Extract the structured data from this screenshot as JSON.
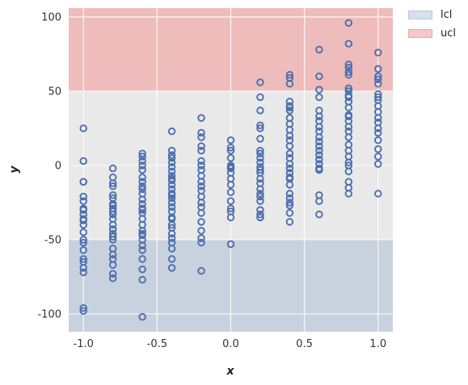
{
  "chart_data": {
    "type": "scatter",
    "title": "",
    "xlabel": "x",
    "ylabel": "y",
    "xlim": [
      -1.1,
      1.1
    ],
    "ylim": [
      -112,
      106
    ],
    "xticks": [
      "-1.0",
      "-0.5",
      "0.0",
      "0.5",
      "1.0"
    ],
    "xtick_values": [
      -1.0,
      -0.5,
      0.0,
      0.5,
      1.0
    ],
    "yticks": [
      "-100",
      "-50",
      "0",
      "50",
      "100"
    ],
    "ytick_values": [
      -100,
      -50,
      0,
      50,
      100
    ],
    "grid": true,
    "legend_position": "outside-top-right",
    "bands": [
      {
        "name": "lcl",
        "from": -112,
        "to": -50,
        "color": "#c8d2de"
      },
      {
        "name": "ucl",
        "from": 50,
        "to": 106,
        "color": "#efbcbc"
      }
    ],
    "legend": [
      {
        "label": "lcl",
        "color": "#d6e0ee",
        "border": "#b9c8dc"
      },
      {
        "label": "ucl",
        "color": "#f8c8c8",
        "border": "#e8a8a8"
      }
    ],
    "colors": {
      "points": "#4c6fae",
      "background": "#e9e9e9"
    },
    "series": [
      {
        "x": [
          -1.0,
          -1.0,
          -1.0,
          -1.0,
          -1.0,
          -1.0,
          -1.0,
          -1.0,
          -1.0,
          -1.0,
          -1.0,
          -1.0,
          -1.0,
          -1.0,
          -1.0,
          -1.0,
          -1.0,
          -1.0,
          -1.0,
          -1.0,
          -1.0,
          -1.0,
          -0.8,
          -0.8,
          -0.8,
          -0.8,
          -0.8,
          -0.8,
          -0.8,
          -0.8,
          -0.8,
          -0.8,
          -0.8,
          -0.8,
          -0.8,
          -0.8,
          -0.8,
          -0.8,
          -0.8,
          -0.8,
          -0.8,
          -0.8,
          -0.8,
          -0.8,
          -0.8,
          -0.8,
          -0.6,
          -0.6,
          -0.6,
          -0.6,
          -0.6,
          -0.6,
          -0.6,
          -0.6,
          -0.6,
          -0.6,
          -0.6,
          -0.6,
          -0.6,
          -0.6,
          -0.6,
          -0.6,
          -0.6,
          -0.6,
          -0.6,
          -0.6,
          -0.6,
          -0.6,
          -0.6,
          -0.6,
          -0.6,
          -0.6,
          -0.6,
          -0.4,
          -0.4,
          -0.4,
          -0.4,
          -0.4,
          -0.4,
          -0.4,
          -0.4,
          -0.4,
          -0.4,
          -0.4,
          -0.4,
          -0.4,
          -0.4,
          -0.4,
          -0.4,
          -0.4,
          -0.4,
          -0.4,
          -0.4,
          -0.4,
          -0.4,
          -0.4,
          -0.4,
          -0.4,
          -0.4,
          -0.4,
          -0.4,
          -0.2,
          -0.2,
          -0.2,
          -0.2,
          -0.2,
          -0.2,
          -0.2,
          -0.2,
          -0.2,
          -0.2,
          -0.2,
          -0.2,
          -0.2,
          -0.2,
          -0.2,
          -0.2,
          -0.2,
          -0.2,
          -0.2,
          -0.2,
          -0.2,
          0.0,
          0.0,
          0.0,
          0.0,
          0.0,
          0.0,
          0.0,
          0.0,
          0.0,
          0.0,
          0.0,
          0.0,
          0.0,
          0.0,
          0.0,
          0.0,
          0.2,
          0.2,
          0.2,
          0.2,
          0.2,
          0.2,
          0.2,
          0.2,
          0.2,
          0.2,
          0.2,
          0.2,
          0.2,
          0.2,
          0.2,
          0.2,
          0.2,
          0.2,
          0.2,
          0.2,
          0.2,
          0.2,
          0.2,
          0.4,
          0.4,
          0.4,
          0.4,
          0.4,
          0.4,
          0.4,
          0.4,
          0.4,
          0.4,
          0.4,
          0.4,
          0.4,
          0.4,
          0.4,
          0.4,
          0.4,
          0.4,
          0.4,
          0.4,
          0.4,
          0.4,
          0.4,
          0.4,
          0.4,
          0.4,
          0.4,
          0.6,
          0.6,
          0.6,
          0.6,
          0.6,
          0.6,
          0.6,
          0.6,
          0.6,
          0.6,
          0.6,
          0.6,
          0.6,
          0.6,
          0.6,
          0.6,
          0.6,
          0.6,
          0.6,
          0.6,
          0.6,
          0.6,
          0.8,
          0.8,
          0.8,
          0.8,
          0.8,
          0.8,
          0.8,
          0.8,
          0.8,
          0.8,
          0.8,
          0.8,
          0.8,
          0.8,
          0.8,
          0.8,
          0.8,
          0.8,
          0.8,
          0.8,
          0.8,
          0.8,
          0.8,
          0.8,
          0.8,
          0.8,
          0.8,
          1.0,
          1.0,
          1.0,
          1.0,
          1.0,
          1.0,
          1.0,
          1.0,
          1.0,
          1.0,
          1.0,
          1.0,
          1.0,
          1.0,
          1.0,
          1.0,
          1.0,
          1.0,
          1.0
        ],
        "y": [
          25,
          3,
          -11,
          -21,
          -24,
          -30,
          -33,
          -37,
          -40,
          -45,
          -50,
          -52,
          -57,
          -63,
          -65,
          -69,
          -72,
          -96,
          -98,
          -11,
          -29,
          -36,
          -2,
          -8,
          -14,
          -20,
          -26,
          -29,
          -33,
          -36,
          -40,
          -43,
          -46,
          -50,
          -56,
          -60,
          -63,
          -67,
          -73,
          -76,
          -22,
          -31,
          -43,
          -48,
          -12,
          -27,
          8,
          6,
          3,
          0,
          -3,
          -8,
          -11,
          -14,
          -19,
          -23,
          -26,
          -29,
          -32,
          -36,
          -40,
          -44,
          -47,
          -50,
          -54,
          -57,
          -63,
          -70,
          -77,
          -102,
          -16,
          -30,
          -46,
          23,
          10,
          7,
          5,
          2,
          -1,
          -4,
          -7,
          -10,
          -13,
          -16,
          -19,
          -22,
          -25,
          -28,
          -31,
          -36,
          -40,
          -46,
          -49,
          -52,
          -56,
          -63,
          -69,
          -9,
          -20,
          -35,
          -42,
          32,
          22,
          19,
          13,
          10,
          3,
          0,
          -3,
          -7,
          -11,
          -14,
          -17,
          -21,
          -25,
          -28,
          -32,
          -38,
          -44,
          -49,
          -52,
          -71,
          17,
          12,
          10,
          5,
          0,
          -2,
          -5,
          -9,
          -13,
          -18,
          -24,
          -29,
          -31,
          -35,
          -53,
          -1,
          56,
          46,
          37,
          27,
          25,
          18,
          10,
          8,
          5,
          2,
          -1,
          -5,
          -9,
          -12,
          -16,
          -19,
          -24,
          -30,
          -35,
          -35,
          -3,
          -21,
          -33,
          61,
          59,
          55,
          43,
          40,
          37,
          32,
          28,
          24,
          20,
          17,
          13,
          8,
          5,
          1,
          -2,
          -5,
          -9,
          -13,
          -19,
          -22,
          -27,
          -32,
          -38,
          39,
          -25,
          -8,
          78,
          60,
          51,
          46,
          37,
          33,
          30,
          26,
          23,
          19,
          16,
          13,
          10,
          7,
          4,
          1,
          -2,
          -3,
          -20,
          -24,
          -33,
          -3,
          96,
          82,
          68,
          66,
          63,
          61,
          52,
          50,
          46,
          43,
          39,
          34,
          30,
          26,
          23,
          19,
          14,
          10,
          6,
          2,
          0,
          -11,
          -15,
          -19,
          47,
          33,
          -4,
          76,
          65,
          60,
          58,
          55,
          48,
          46,
          44,
          40,
          36,
          32,
          29,
          25,
          22,
          17,
          11,
          6,
          1,
          -19
        ]
      }
    ]
  }
}
